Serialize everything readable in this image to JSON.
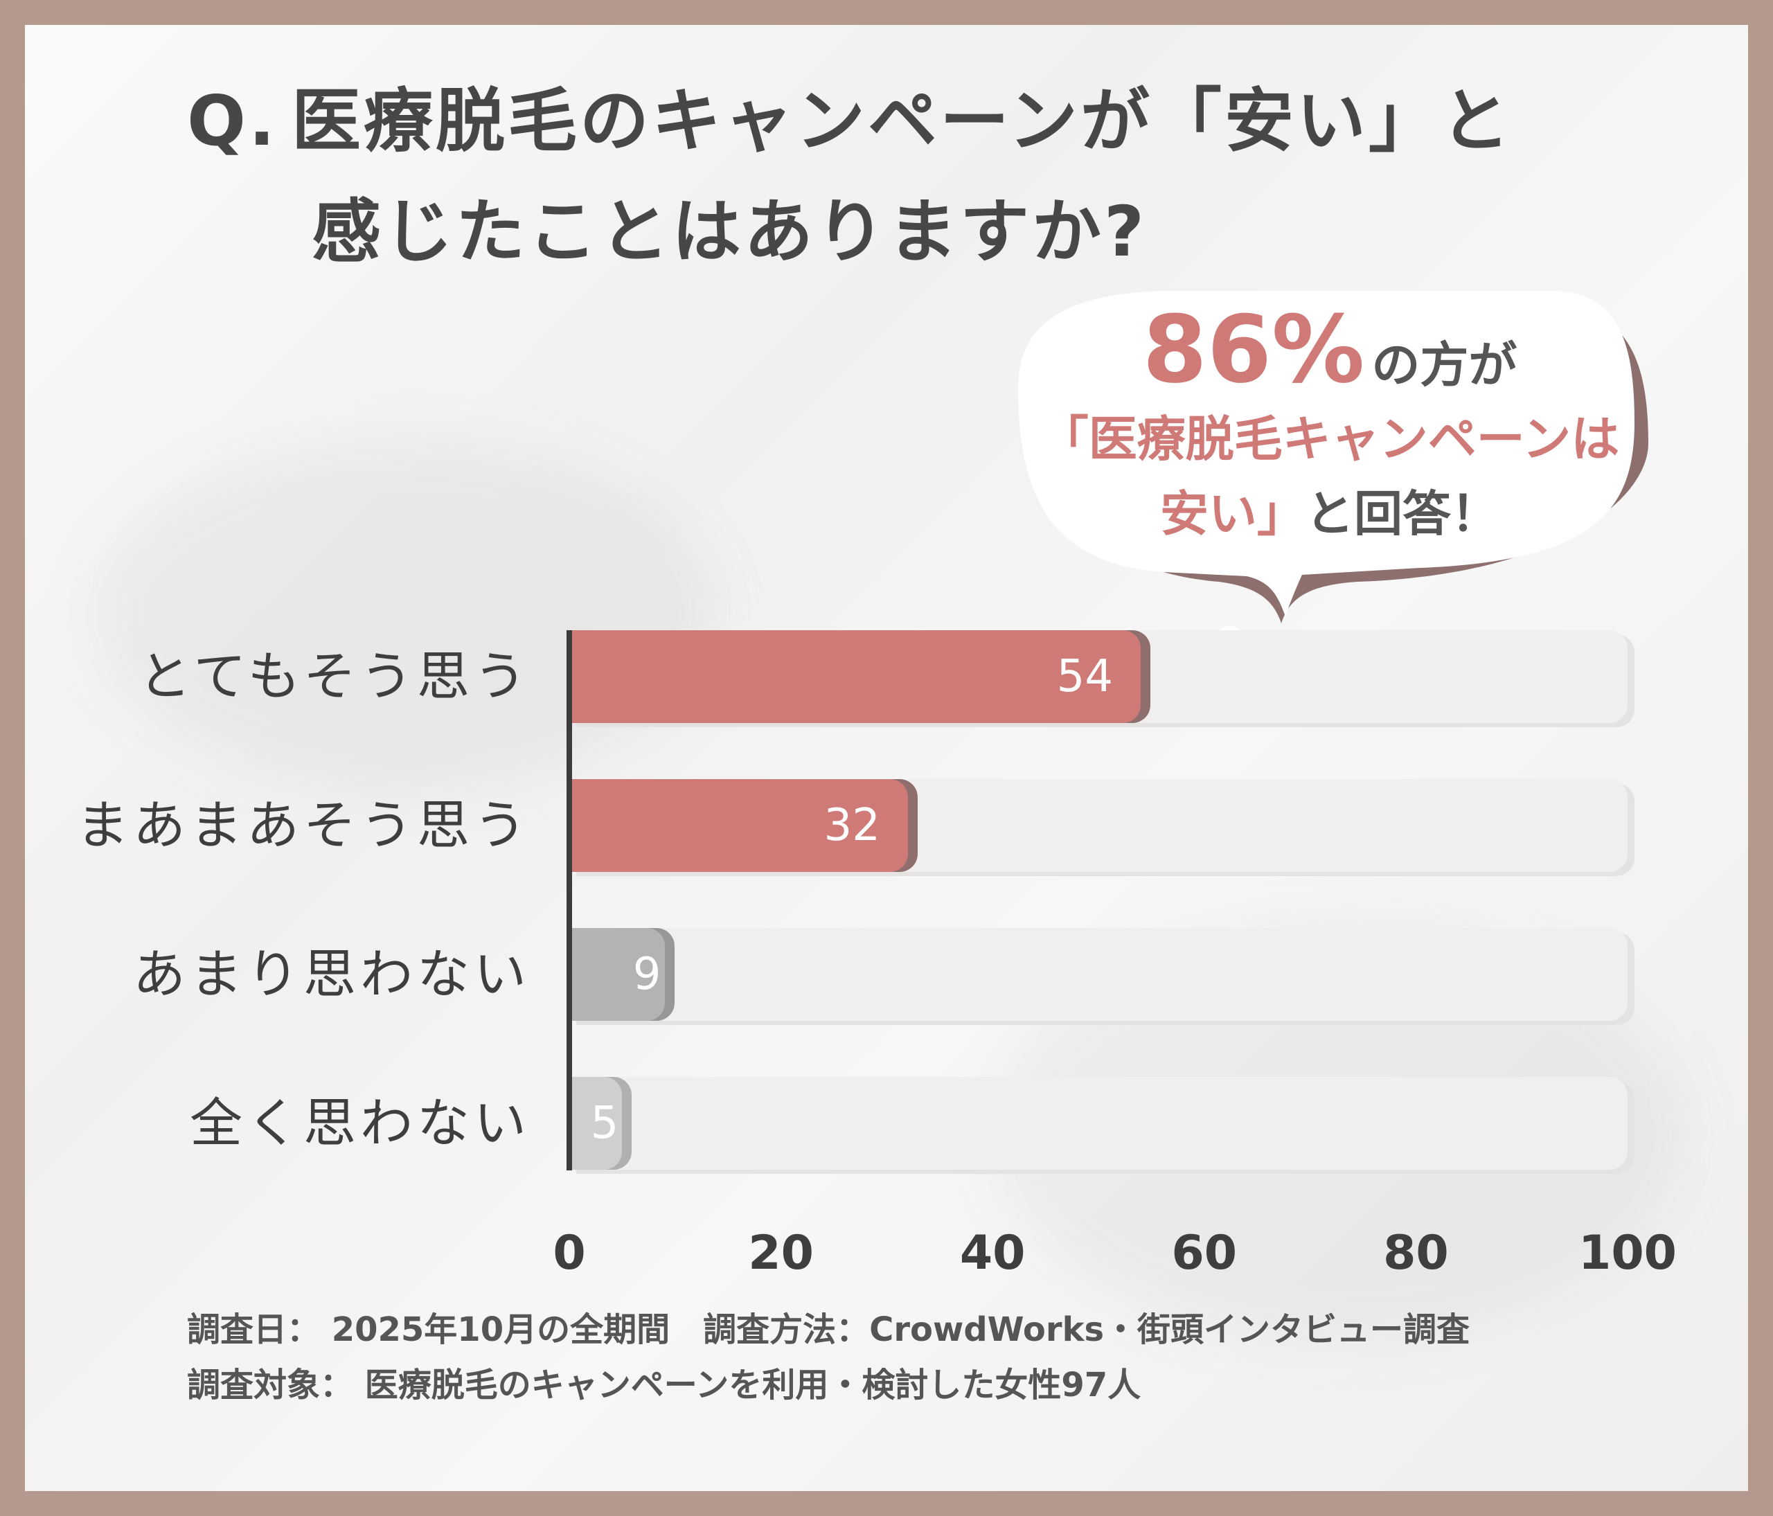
{
  "title": {
    "q": "Q.",
    "line1": "医療脱毛のキャンペーンが「安い」と",
    "line2": "感じたことはありますか?"
  },
  "callout": {
    "percent": "86%",
    "suffix": "の方が",
    "line2": "「医療脱毛キャンペーンは",
    "line3_highlight": "安い」",
    "line3_rest": "と回答！"
  },
  "chart_data": {
    "type": "bar",
    "orientation": "horizontal",
    "categories": [
      "とてもそう思う",
      "まあまあそう思う",
      "あまり思わない",
      "全く思わない"
    ],
    "values": [
      54,
      32,
      9,
      5
    ],
    "value_labels": [
      "54",
      "32",
      "9",
      "5"
    ],
    "xlim": [
      0,
      100
    ],
    "x_ticks": [
      "0",
      "20",
      "40",
      "60",
      "80",
      "100"
    ],
    "grid": false,
    "colors": [
      "#d07a77",
      "#d07a77",
      "#b3b3b3",
      "#cfcfcf"
    ],
    "shadow_colors": [
      "#8e6f6d",
      "#8e6f6d",
      "#979797",
      "#b0b0b0"
    ]
  },
  "footnote": {
    "line1": "調査日： 2025年10月の全期間　調査方法：CrowdWorks・街頭インタビュー調査",
    "line2": "調査対象： 医療脱毛のキャンペーンを利用・検討した女性97人"
  }
}
